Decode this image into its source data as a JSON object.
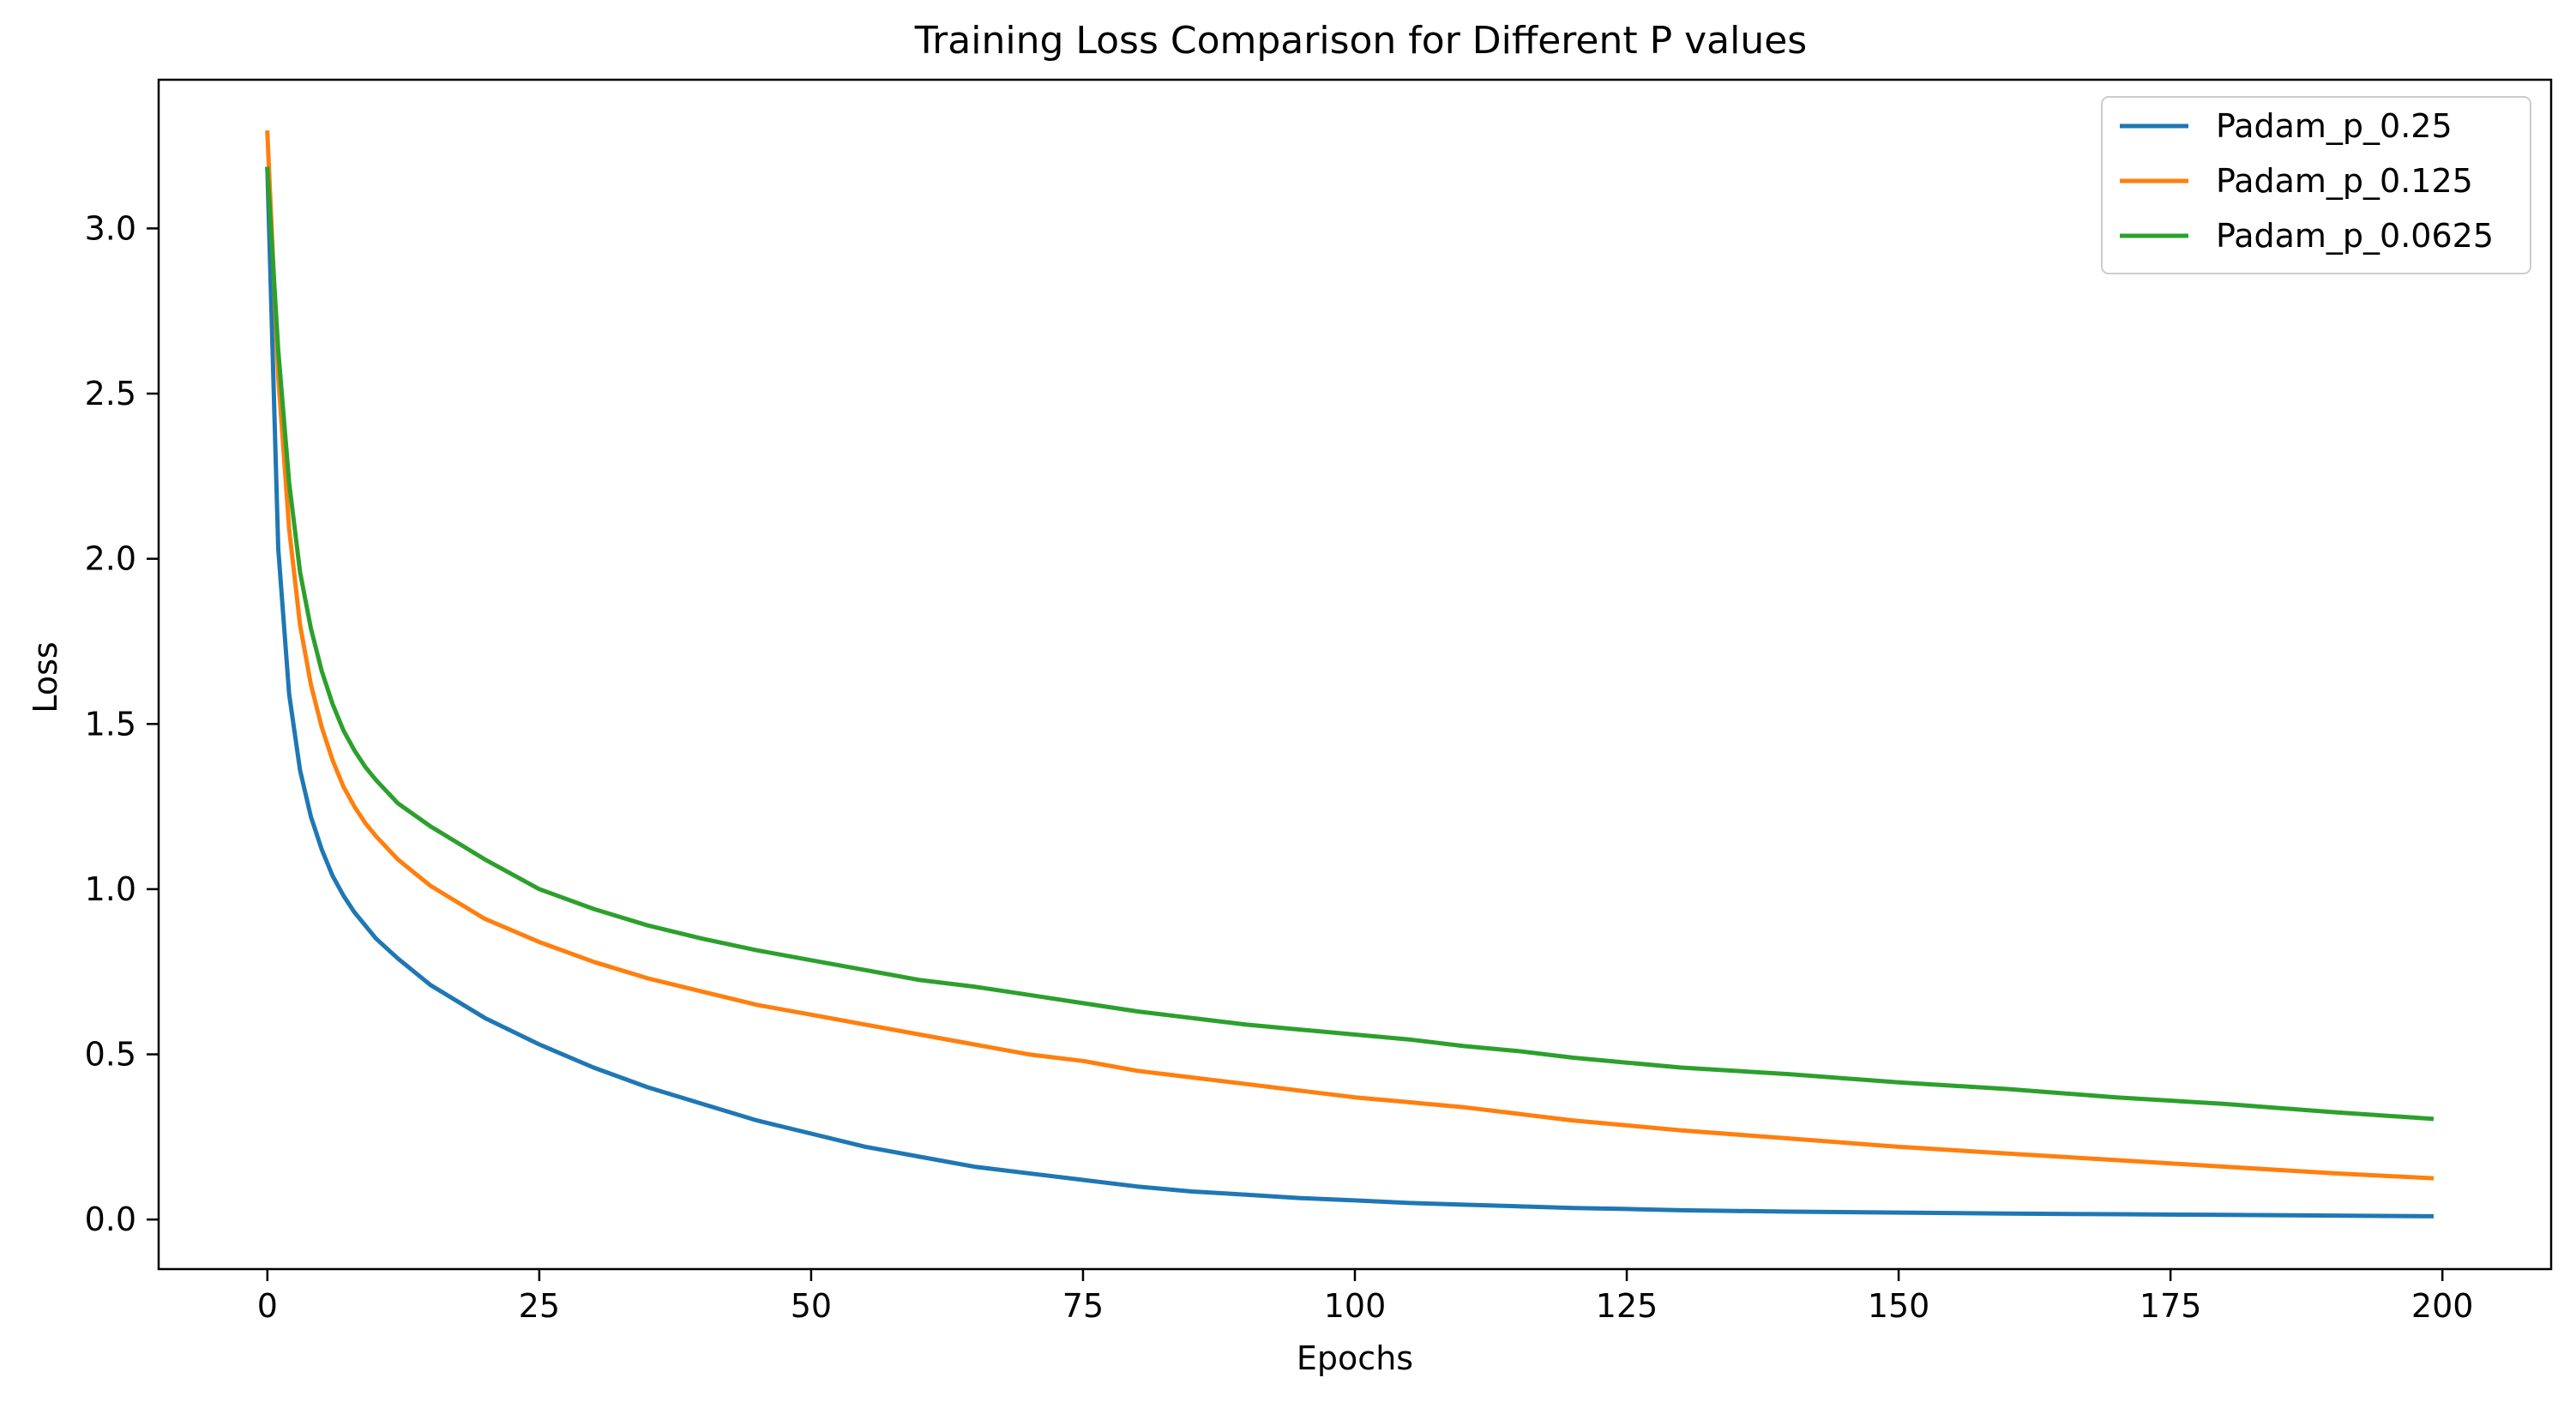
{
  "chart_data": {
    "type": "line",
    "title": "Training Loss Comparison for Different P values",
    "xlabel": "Epochs",
    "ylabel": "Loss",
    "xlim": [
      -10,
      210
    ],
    "ylim": [
      -0.15,
      3.45
    ],
    "xticks": [
      0,
      25,
      50,
      75,
      100,
      125,
      150,
      175,
      200
    ],
    "xtick_labels": [
      "0",
      "25",
      "50",
      "75",
      "100",
      "125",
      "150",
      "175",
      "200"
    ],
    "yticks": [
      0.0,
      0.5,
      1.0,
      1.5,
      2.0,
      2.5,
      3.0
    ],
    "ytick_labels": [
      "0.0",
      "0.5",
      "1.0",
      "1.5",
      "2.0",
      "2.5",
      "3.0"
    ],
    "grid": false,
    "legend_position": "top-right",
    "series": [
      {
        "name": "Padam_p_0.25",
        "color": "#1f77b4",
        "x": [
          0,
          1,
          2,
          3,
          4,
          5,
          6,
          7,
          8,
          9,
          10,
          12,
          15,
          20,
          25,
          30,
          35,
          40,
          45,
          50,
          55,
          60,
          65,
          70,
          75,
          80,
          85,
          90,
          95,
          100,
          105,
          110,
          115,
          120,
          125,
          130,
          140,
          150,
          160,
          170,
          180,
          190,
          199
        ],
        "y": [
          3.18,
          2.03,
          1.59,
          1.36,
          1.22,
          1.12,
          1.04,
          0.98,
          0.93,
          0.89,
          0.85,
          0.79,
          0.71,
          0.61,
          0.53,
          0.46,
          0.4,
          0.35,
          0.3,
          0.26,
          0.22,
          0.19,
          0.16,
          0.14,
          0.12,
          0.1,
          0.085,
          0.075,
          0.065,
          0.058,
          0.05,
          0.045,
          0.04,
          0.035,
          0.032,
          0.028,
          0.024,
          0.021,
          0.018,
          0.016,
          0.014,
          0.012,
          0.01
        ]
      },
      {
        "name": "Padam_p_0.125",
        "color": "#ff7f0e",
        "x": [
          0,
          1,
          2,
          3,
          4,
          5,
          6,
          7,
          8,
          9,
          10,
          12,
          15,
          20,
          25,
          30,
          35,
          40,
          45,
          50,
          55,
          60,
          65,
          70,
          75,
          80,
          85,
          90,
          95,
          100,
          105,
          110,
          115,
          120,
          125,
          130,
          140,
          150,
          160,
          170,
          180,
          190,
          199
        ],
        "y": [
          3.29,
          2.55,
          2.09,
          1.8,
          1.62,
          1.49,
          1.39,
          1.31,
          1.25,
          1.2,
          1.16,
          1.09,
          1.01,
          0.91,
          0.84,
          0.78,
          0.73,
          0.69,
          0.65,
          0.62,
          0.59,
          0.56,
          0.53,
          0.5,
          0.48,
          0.45,
          0.43,
          0.41,
          0.39,
          0.37,
          0.355,
          0.34,
          0.32,
          0.3,
          0.285,
          0.27,
          0.245,
          0.22,
          0.2,
          0.18,
          0.16,
          0.14,
          0.125
        ]
      },
      {
        "name": "Padam_p_0.0625",
        "color": "#2ca02c",
        "x": [
          0,
          1,
          2,
          3,
          4,
          5,
          6,
          7,
          8,
          9,
          10,
          12,
          15,
          20,
          25,
          30,
          35,
          40,
          45,
          50,
          55,
          60,
          65,
          70,
          75,
          80,
          85,
          90,
          95,
          100,
          105,
          110,
          115,
          120,
          125,
          130,
          140,
          150,
          160,
          170,
          180,
          190,
          199
        ],
        "y": [
          3.18,
          2.63,
          2.23,
          1.96,
          1.79,
          1.66,
          1.56,
          1.48,
          1.42,
          1.37,
          1.33,
          1.26,
          1.19,
          1.09,
          1.0,
          0.94,
          0.89,
          0.85,
          0.815,
          0.785,
          0.755,
          0.725,
          0.705,
          0.68,
          0.655,
          0.63,
          0.61,
          0.59,
          0.575,
          0.56,
          0.545,
          0.525,
          0.51,
          0.49,
          0.475,
          0.46,
          0.44,
          0.415,
          0.395,
          0.37,
          0.35,
          0.325,
          0.305
        ]
      }
    ]
  }
}
